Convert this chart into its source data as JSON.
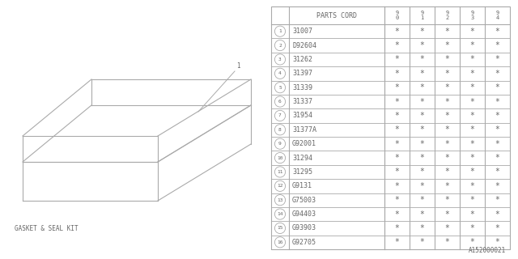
{
  "bg_color": "#ffffff",
  "line_color": "#aaaaaa",
  "text_color": "#666666",
  "header": "PARTS CORD",
  "year_cols": [
    "9\n0",
    "9\n1",
    "9\n2",
    "9\n3",
    "9\n4"
  ],
  "rows": [
    {
      "num": 1,
      "part": "31007"
    },
    {
      "num": 2,
      "part": "D92604"
    },
    {
      "num": 3,
      "part": "31262"
    },
    {
      "num": 4,
      "part": "31397"
    },
    {
      "num": 5,
      "part": "31339"
    },
    {
      "num": 6,
      "part": "31337"
    },
    {
      "num": 7,
      "part": "31954"
    },
    {
      "num": 8,
      "part": "31377A"
    },
    {
      "num": 9,
      "part": "G92001"
    },
    {
      "num": 10,
      "part": "31294"
    },
    {
      "num": 11,
      "part": "31295"
    },
    {
      "num": 12,
      "part": "G9131"
    },
    {
      "num": 13,
      "part": "G75003"
    },
    {
      "num": 14,
      "part": "G94403"
    },
    {
      "num": 15,
      "part": "G93903"
    },
    {
      "num": 16,
      "part": "G92705"
    }
  ],
  "diagram_label": "GASKET & SEAL KIT",
  "ref_code": "A152000021"
}
